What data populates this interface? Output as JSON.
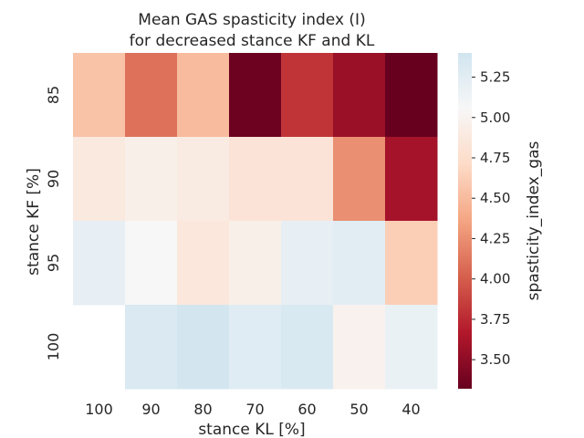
{
  "chart_data": {
    "type": "heatmap",
    "title": "Mean GAS spasticity index (I)",
    "subtitle": "for decreased stance KF and KL",
    "xlabel": "stance KL [%]",
    "ylabel": "stance KF [%]",
    "x_categories": [
      "100",
      "90",
      "80",
      "70",
      "60",
      "50",
      "40"
    ],
    "y_categories": [
      "85",
      "90",
      "95",
      "100"
    ],
    "values": [
      [
        4.55,
        4.1,
        4.5,
        3.35,
        3.8,
        3.55,
        3.3
      ],
      [
        4.88,
        4.95,
        4.9,
        4.82,
        4.82,
        4.25,
        3.6
      ],
      [
        5.2,
        5.05,
        4.85,
        4.95,
        5.2,
        5.25,
        4.62
      ],
      [
        null,
        5.32,
        5.38,
        5.27,
        5.33,
        4.98,
        5.17
      ]
    ],
    "colorbar": {
      "label": "spasticity_index_gas",
      "vmin": 3.32,
      "vmax": 5.4,
      "ticks": [
        "3.50",
        "3.75",
        "4.00",
        "4.25",
        "4.50",
        "4.75",
        "5.00",
        "5.25"
      ],
      "colormap": "RdBu",
      "colors": [
        "#67001f",
        "#b2182b",
        "#d6604d",
        "#f4a582",
        "#fddbc7",
        "#f7f7f7",
        "#d1e5f0"
      ]
    }
  }
}
